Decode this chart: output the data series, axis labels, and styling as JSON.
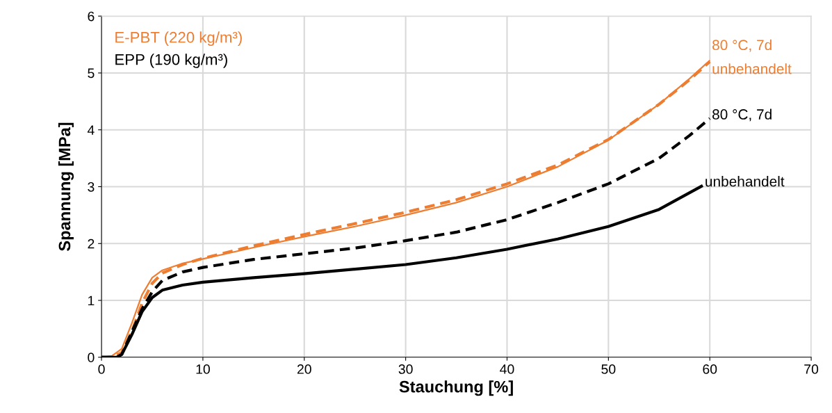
{
  "chart_data": {
    "type": "line",
    "xlabel": "Stauchung [%]",
    "ylabel": "Spannung [MPa]",
    "xlim": [
      0,
      70
    ],
    "xticks": [
      0,
      10,
      20,
      30,
      40,
      50,
      60,
      70
    ],
    "ylim": [
      0,
      6
    ],
    "yticks": [
      0,
      1,
      2,
      3,
      4,
      5,
      6
    ],
    "grid": true,
    "legend": false,
    "marker": "none",
    "annotations": [
      "E-PBT (220 kg/m³)",
      "EPP (190 kg/m³)"
    ],
    "series": [
      {
        "name": "80 °C, 7d",
        "color": "#ed7d31",
        "line_style": "dashed",
        "x": [
          0,
          1,
          2,
          3,
          4,
          5,
          6,
          8,
          10,
          15,
          20,
          25,
          30,
          35,
          40,
          45,
          50,
          55,
          58,
          60
        ],
        "values": [
          0,
          0,
          0.08,
          0.45,
          0.95,
          1.3,
          1.48,
          1.63,
          1.74,
          1.96,
          2.16,
          2.35,
          2.55,
          2.77,
          3.05,
          3.38,
          3.83,
          4.45,
          4.88,
          5.2
        ]
      },
      {
        "name": "unbehandelt",
        "color": "#ed7d31",
        "line_style": "solid",
        "x": [
          0,
          1,
          2,
          3,
          4,
          5,
          6,
          8,
          10,
          15,
          20,
          25,
          30,
          35,
          40,
          45,
          50,
          55,
          58,
          60
        ],
        "values": [
          0,
          0.02,
          0.15,
          0.6,
          1.1,
          1.4,
          1.53,
          1.65,
          1.73,
          1.93,
          2.12,
          2.3,
          2.5,
          2.72,
          3.0,
          3.35,
          3.82,
          4.45,
          4.9,
          5.22
        ]
      },
      {
        "name": "80 °C, 7d",
        "color": "#000000",
        "line_style": "dashed",
        "x": [
          0,
          1.5,
          2,
          3,
          4,
          5,
          6,
          8,
          10,
          15,
          20,
          25,
          30,
          35,
          40,
          45,
          50,
          55,
          58,
          60
        ],
        "values": [
          0,
          0,
          0.05,
          0.45,
          0.85,
          1.15,
          1.35,
          1.5,
          1.58,
          1.72,
          1.82,
          1.92,
          2.05,
          2.2,
          2.42,
          2.72,
          3.05,
          3.5,
          3.9,
          4.2
        ]
      },
      {
        "name": "unbehandelt",
        "color": "#000000",
        "line_style": "solid",
        "x": [
          0,
          1.5,
          2,
          3,
          4,
          5,
          6,
          8,
          10,
          15,
          20,
          25,
          30,
          35,
          40,
          45,
          50,
          55,
          59.3
        ],
        "values": [
          0,
          0,
          0.05,
          0.4,
          0.8,
          1.05,
          1.18,
          1.27,
          1.32,
          1.4,
          1.47,
          1.55,
          1.63,
          1.75,
          1.9,
          2.08,
          2.3,
          2.6,
          3.02
        ]
      }
    ]
  }
}
